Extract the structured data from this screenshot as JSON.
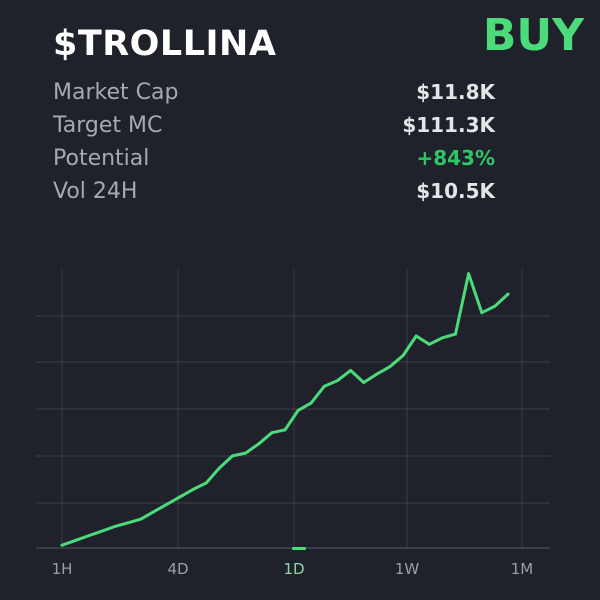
{
  "token": {
    "symbol": "$TROLLINA",
    "action_label": "BUY"
  },
  "stats": [
    {
      "label": "Market Cap",
      "value": "$11.8K",
      "tone": "neutral"
    },
    {
      "label": "Target MC",
      "value": "$111.3K",
      "tone": "neutral"
    },
    {
      "label": "Potential",
      "value": "+843%",
      "tone": "positive"
    },
    {
      "label": "Vol 24H",
      "value": "$10.5K",
      "tone": "neutral"
    }
  ],
  "colors": {
    "background": "#1f222a",
    "accent": "#4cdb7b",
    "positive": "#2fc766",
    "grid": "#3a3e47"
  },
  "timeframes": {
    "labels": [
      "1H",
      "4D",
      "1D",
      "1W",
      "1M"
    ],
    "active": "1D"
  },
  "chart_data": {
    "type": "line",
    "title": "",
    "xlabel": "",
    "ylabel": "",
    "series": [
      {
        "values": [
          0.15,
          0.4,
          0.65,
          0.9,
          1.15,
          1.35,
          1.55,
          1.95,
          2.35,
          2.75,
          3.15,
          3.5,
          4.3,
          4.95,
          5.1,
          5.6,
          6.2,
          6.35,
          7.4,
          7.8,
          8.7,
          9.0,
          9.55,
          8.9,
          9.35,
          9.75,
          10.35,
          11.4,
          10.95,
          11.3,
          11.5,
          14.75,
          12.65,
          13.0,
          13.65
        ]
      }
    ],
    "ylim": [
      0,
      15
    ],
    "grid": true,
    "legend": "none"
  }
}
